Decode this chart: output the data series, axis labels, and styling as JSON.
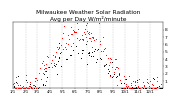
{
  "title": "Milwaukee Weather Solar Radiation\nAvg per Day W/m²/minute",
  "title_fontsize": 4.2,
  "bg_color": "#ffffff",
  "plot_bg": "#ffffff",
  "grid_color": "#b0b0b0",
  "dot_color_red": "#ff0000",
  "dot_color_black": "#000000",
  "ylim": [
    0,
    9
  ],
  "yticks": [
    1,
    2,
    3,
    4,
    5,
    6,
    7,
    8
  ],
  "ytick_labels": [
    "1",
    "2",
    "3",
    "4",
    "5",
    "6",
    "7",
    "8"
  ],
  "n_points": 365,
  "ylabel_fontsize": 3.2,
  "xlabel_fontsize": 2.8,
  "month_starts": [
    0,
    31,
    59,
    90,
    120,
    151,
    181,
    212,
    243,
    273,
    304,
    334,
    365
  ],
  "month_labels": [
    "1/1",
    "2/1",
    "3/1",
    "4/1",
    "5/1",
    "6/1",
    "7/1",
    "8/1",
    "9/1",
    "10/1",
    "11/1",
    "12/1"
  ]
}
